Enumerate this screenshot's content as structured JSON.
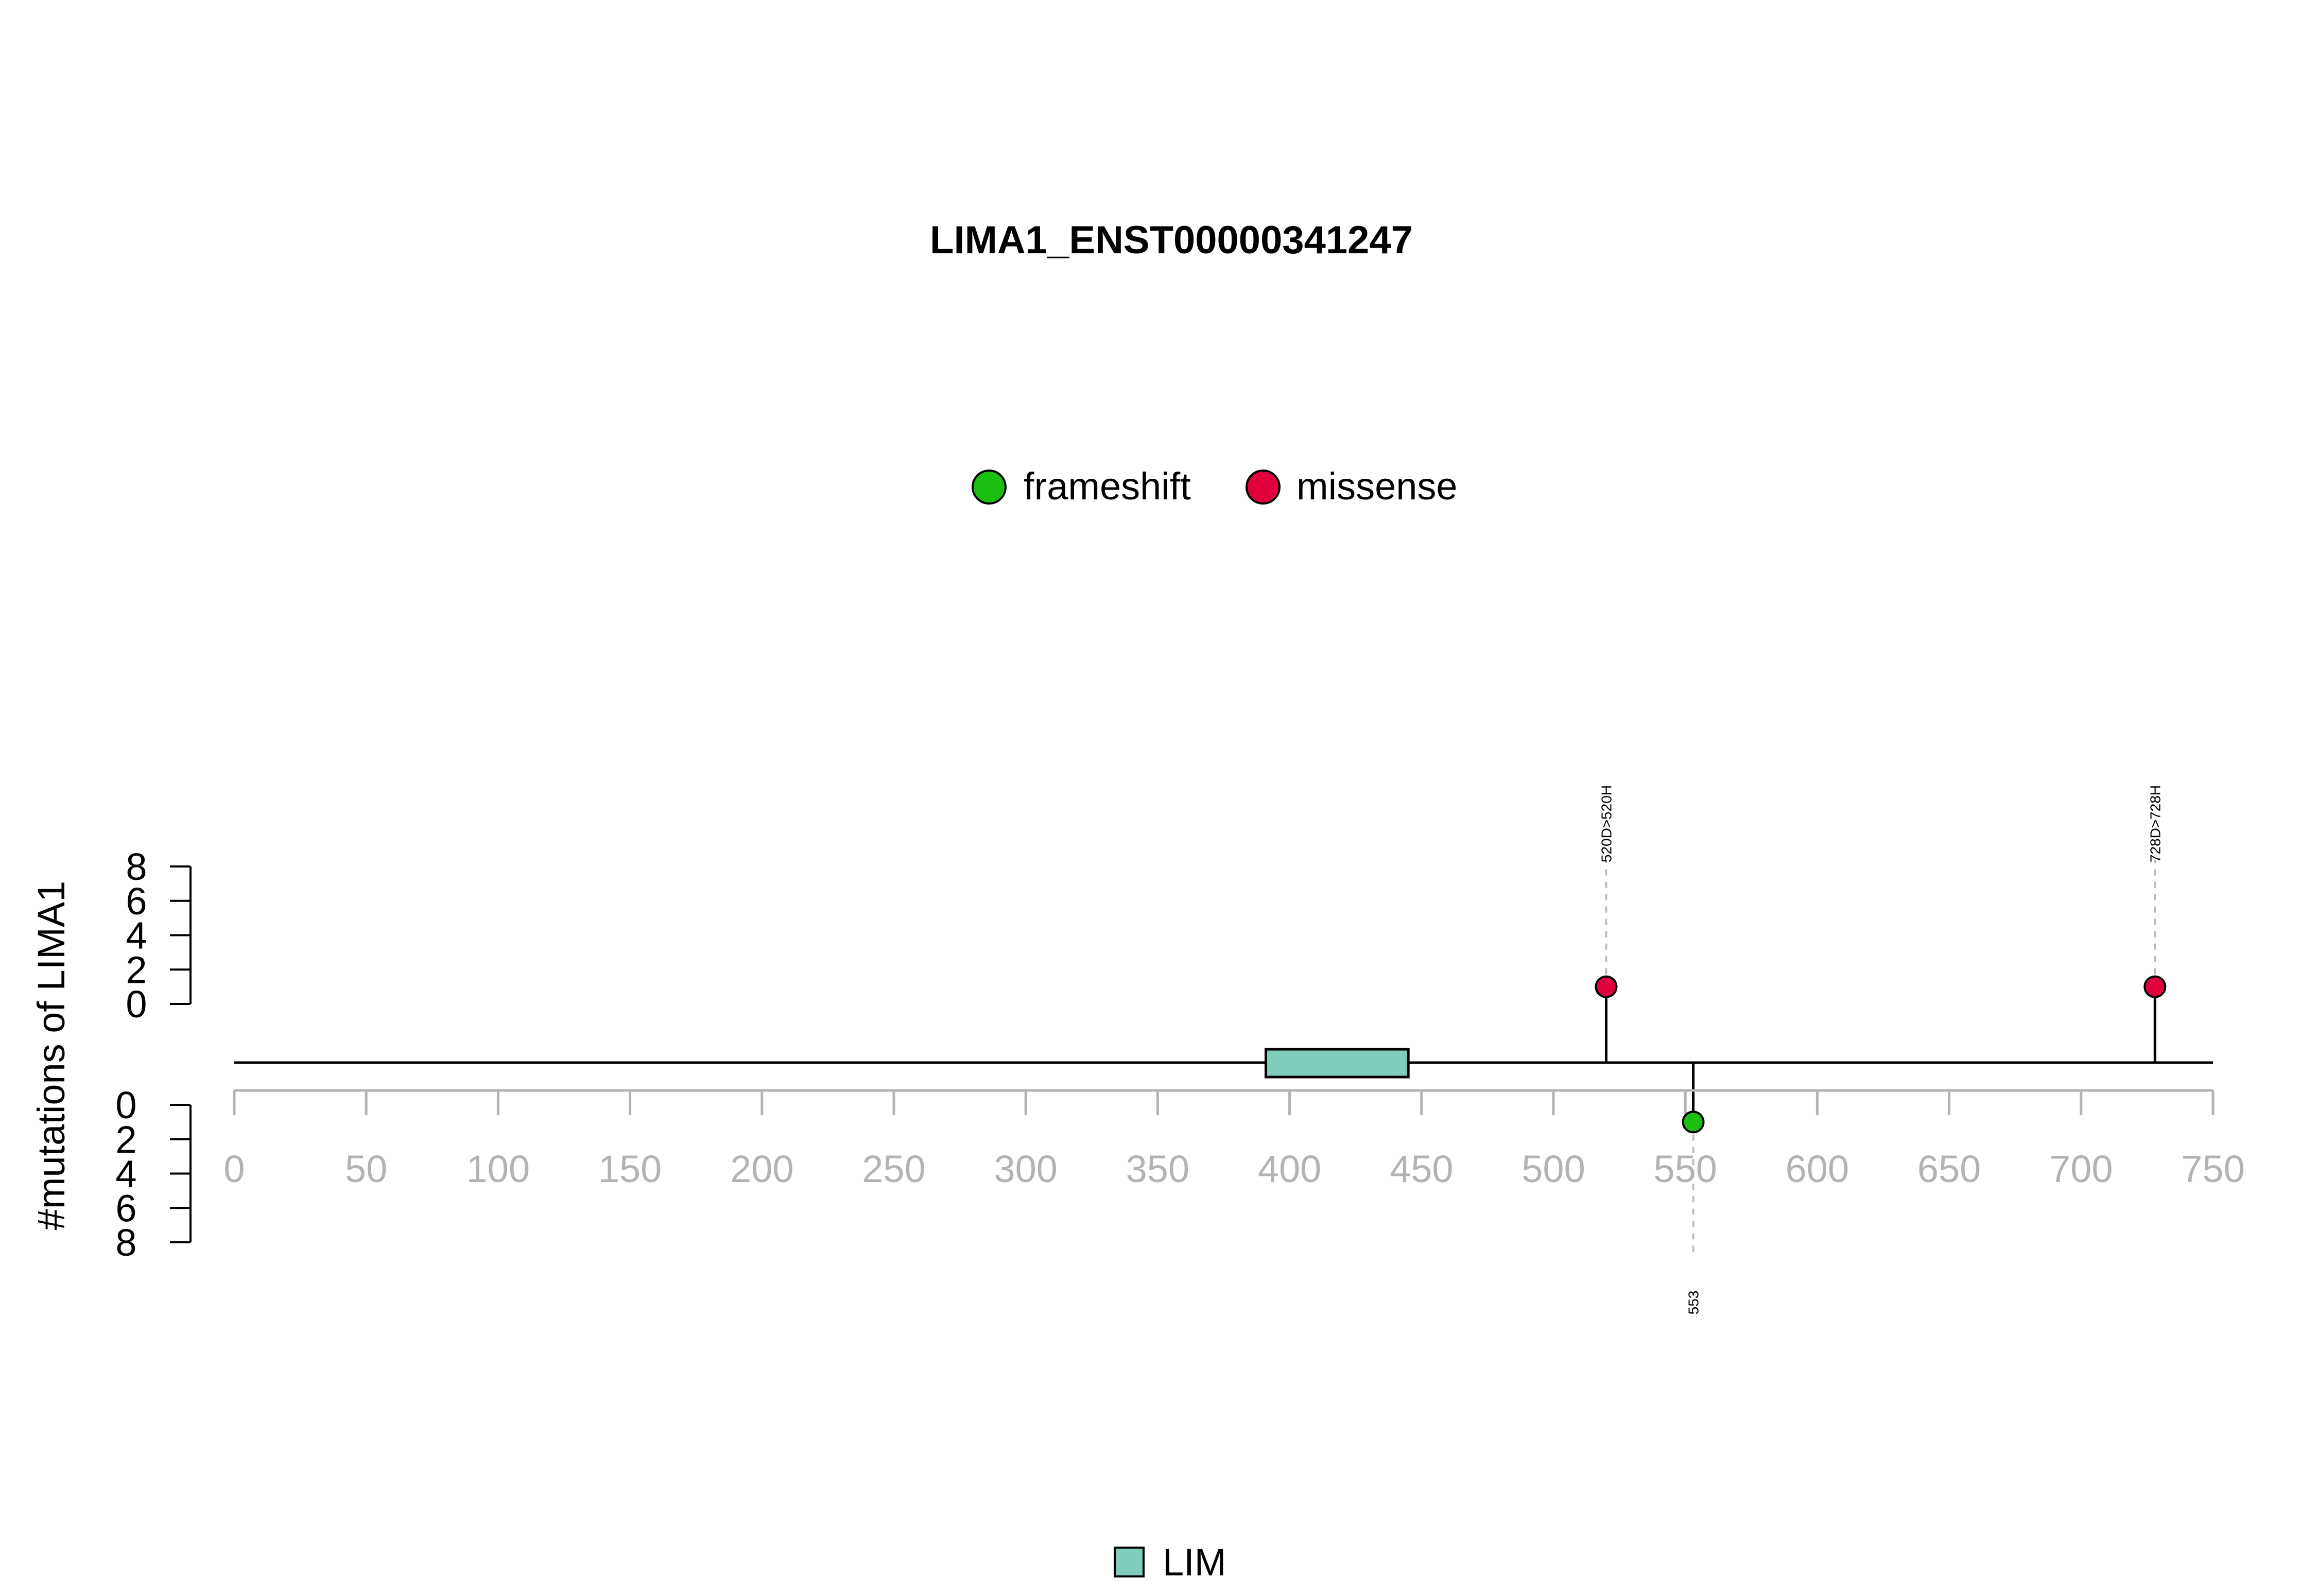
{
  "chart_data": {
    "type": "lollipop",
    "title": "LIMA1_ENST00000341247",
    "ylabel": "#mutations of LIMA1",
    "xlim": [
      0,
      750
    ],
    "x_ticks": [
      "0",
      "50",
      "100",
      "150",
      "200",
      "250",
      "300",
      "350",
      "400",
      "450",
      "500",
      "550",
      "600",
      "650",
      "700",
      "750"
    ],
    "y_top_ticks": [
      "0",
      "2",
      "4",
      "6",
      "8"
    ],
    "y_bottom_ticks": [
      "0",
      "2",
      "4",
      "6",
      "8"
    ],
    "ylim": [
      0,
      8
    ],
    "legend": [
      {
        "name": "frameshift",
        "color": "#1cbe0f"
      },
      {
        "name": "missense",
        "color": "#e0003c"
      }
    ],
    "mutations": [
      {
        "position": 520,
        "count": 1,
        "type": "missense",
        "label": "520D>520H",
        "side": "top"
      },
      {
        "position": 728,
        "count": 1,
        "type": "missense",
        "label": "728D>728H",
        "side": "top"
      },
      {
        "position": 553,
        "count": 1,
        "type": "frameshift",
        "label": "553",
        "side": "bottom"
      }
    ],
    "domains": [
      {
        "name": "LIM",
        "start": 391,
        "end": 445,
        "color": "#7fcdbb"
      }
    ],
    "domain_legend": [
      {
        "name": "LIM",
        "color": "#7fcdbb"
      }
    ]
  }
}
